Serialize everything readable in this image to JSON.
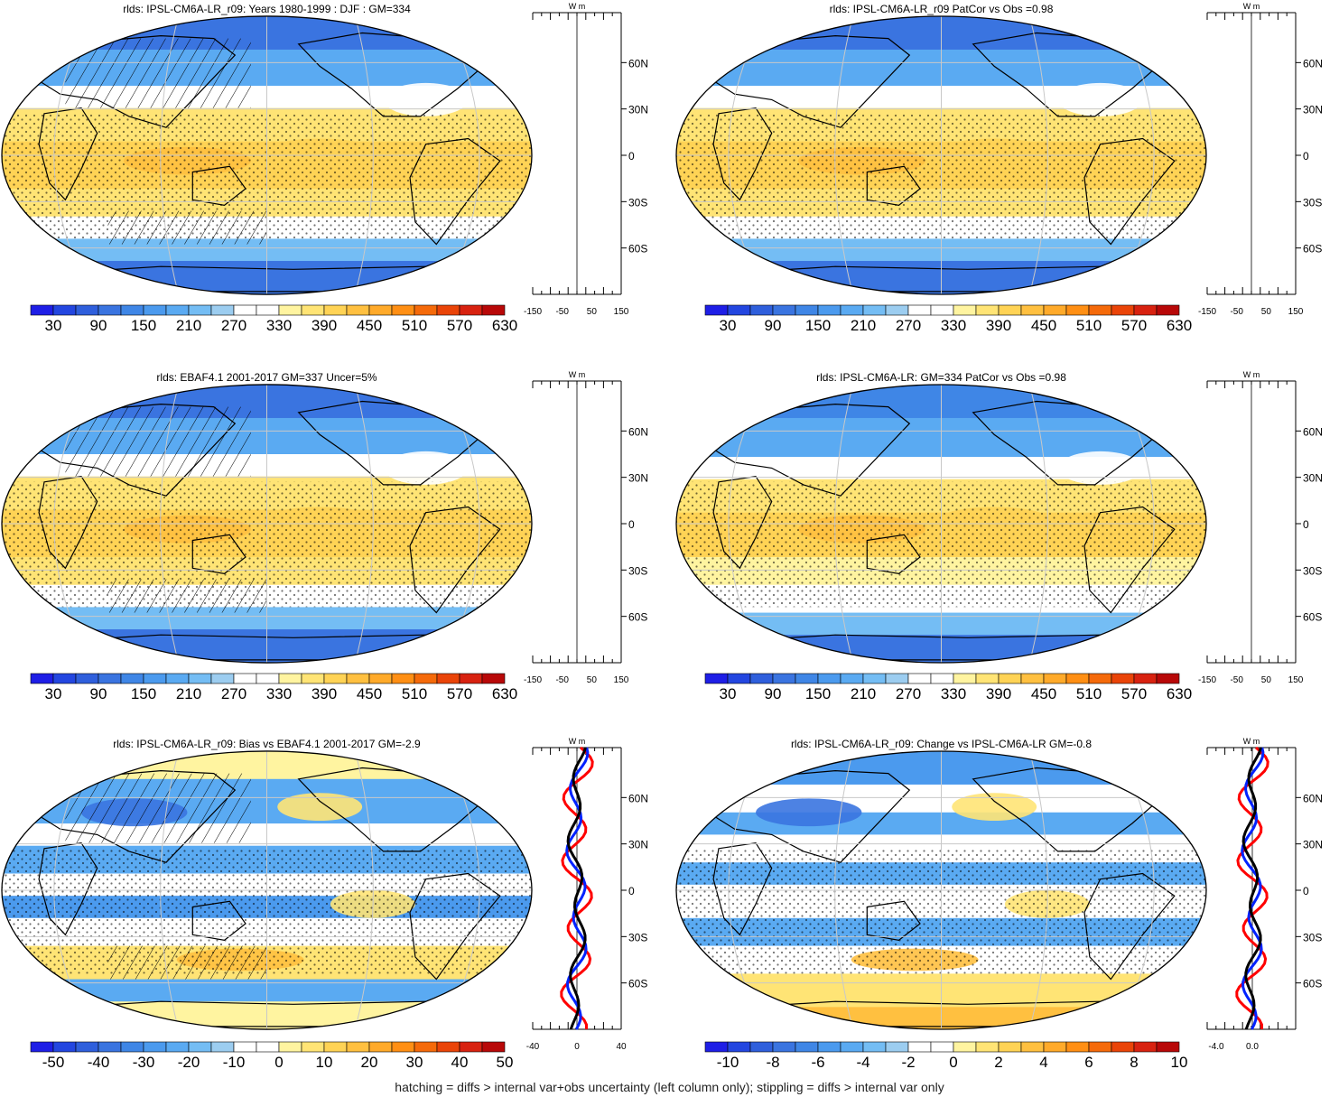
{
  "footer": "hatching = diffs > internal var+obs uncertainty (left column only); stippling = diffs > internal var only",
  "colors": {
    "abs": [
      "#1e1ee6",
      "#2346e0",
      "#2f5fdc",
      "#3a74e0",
      "#3f86e6",
      "#4b9aee",
      "#5aaaf2",
      "#74bdf4",
      "#9ccdf0",
      "#ffffff",
      "#ffffff",
      "#fff4a0",
      "#ffe475",
      "#ffd355",
      "#ffc040",
      "#ffaa2a",
      "#ff8f14",
      "#f56a0a",
      "#ea4408",
      "#d82210",
      "#b80808"
    ],
    "diff": [
      "#1e1ee6",
      "#2346e0",
      "#2f5fdc",
      "#3a74e0",
      "#3f86e6",
      "#4b9aee",
      "#5aaaf2",
      "#74bdf4",
      "#9ccdf0",
      "#ffffff",
      "#ffffff",
      "#fff4a0",
      "#ffe475",
      "#ffd355",
      "#ffc040",
      "#ffaa2a",
      "#ff8f14",
      "#f56a0a",
      "#ea4408",
      "#d82210",
      "#b80808"
    ]
  },
  "panels": [
    {
      "title": "rlds: IPSL-CM6A-LR_r09: Years 1980-1999 : DJF : GM=334",
      "scale": "abs",
      "mode": "abs",
      "hatch": "left",
      "cbar_labels": [
        "30",
        "90",
        "150",
        "210",
        "270",
        "330",
        "390",
        "450",
        "510",
        "570",
        "630"
      ],
      "profile": {
        "ticks": [
          "-150",
          "-50",
          "50",
          "150"
        ],
        "unit": "W m",
        "lines": []
      }
    },
    {
      "title": "rlds: IPSL-CM6A-LR_r09 PatCor vs Obs =0.98",
      "scale": "abs",
      "mode": "abs",
      "hatch": "none",
      "cbar_labels": [
        "30",
        "90",
        "150",
        "210",
        "270",
        "330",
        "390",
        "450",
        "510",
        "570",
        "630"
      ],
      "profile": {
        "ticks": [
          "-150",
          "-50",
          "50",
          "150"
        ],
        "unit": "W m",
        "lines": []
      }
    },
    {
      "title": "rlds: EBAF4.1 2001-2017 GM=337 Uncer=5%",
      "scale": "abs",
      "mode": "abs",
      "hatch": "left",
      "cbar_labels": [
        "30",
        "90",
        "150",
        "210",
        "270",
        "330",
        "390",
        "450",
        "510",
        "570",
        "630"
      ],
      "profile": {
        "ticks": [
          "-150",
          "-50",
          "50",
          "150"
        ],
        "unit": "W m",
        "lines": []
      }
    },
    {
      "title": "rlds: IPSL-CM6A-LR: GM=334 PatCor vs Obs =0.98",
      "scale": "abs",
      "mode": "abs2",
      "hatch": "none",
      "cbar_labels": [
        "30",
        "90",
        "150",
        "210",
        "270",
        "330",
        "390",
        "450",
        "510",
        "570",
        "630"
      ],
      "profile": {
        "ticks": [
          "-150",
          "-50",
          "50",
          "150"
        ],
        "unit": "W m",
        "lines": []
      }
    },
    {
      "title": "rlds: IPSL-CM6A-LR_r09: Bias vs EBAF4.1 2001-2017 GM=-2.9",
      "scale": "diff",
      "mode": "bias",
      "hatch": "left",
      "cbar_labels": [
        "-50",
        "-40",
        "-30",
        "-20",
        "-10",
        "0",
        "10",
        "20",
        "30",
        "40",
        "50"
      ],
      "profile": {
        "ticks": [
          "-40",
          "0",
          "40"
        ],
        "unit": "W m",
        "lines": [
          "red",
          "blue",
          "black"
        ]
      }
    },
    {
      "title": "rlds: IPSL-CM6A-LR_r09: Change vs IPSL-CM6A-LR GM=-0.8",
      "scale": "diff",
      "mode": "change",
      "hatch": "none",
      "cbar_labels": [
        "-10",
        "-8",
        "-6",
        "-4",
        "-2",
        "0",
        "2",
        "4",
        "6",
        "8",
        "10"
      ],
      "profile": {
        "ticks": [
          "-4.0",
          "0.0"
        ],
        "unit": "W m",
        "lines": [
          "red",
          "blue",
          "black"
        ]
      }
    }
  ],
  "lat_labels": [
    "60N",
    "30N",
    "0",
    "30S",
    "60S"
  ]
}
